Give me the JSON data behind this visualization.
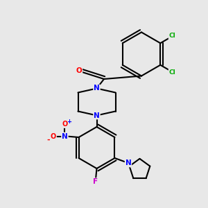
{
  "bg_color": "#e8e8e8",
  "bond_color": "#000000",
  "atom_colors": {
    "N": "#0000ff",
    "O": "#ff0000",
    "F": "#cc00cc",
    "Cl": "#00aa00",
    "C": "#000000"
  },
  "figsize": [
    3.0,
    3.0
  ],
  "dpi": 100,
  "xlim": [
    0,
    10
  ],
  "ylim": [
    0,
    10
  ]
}
